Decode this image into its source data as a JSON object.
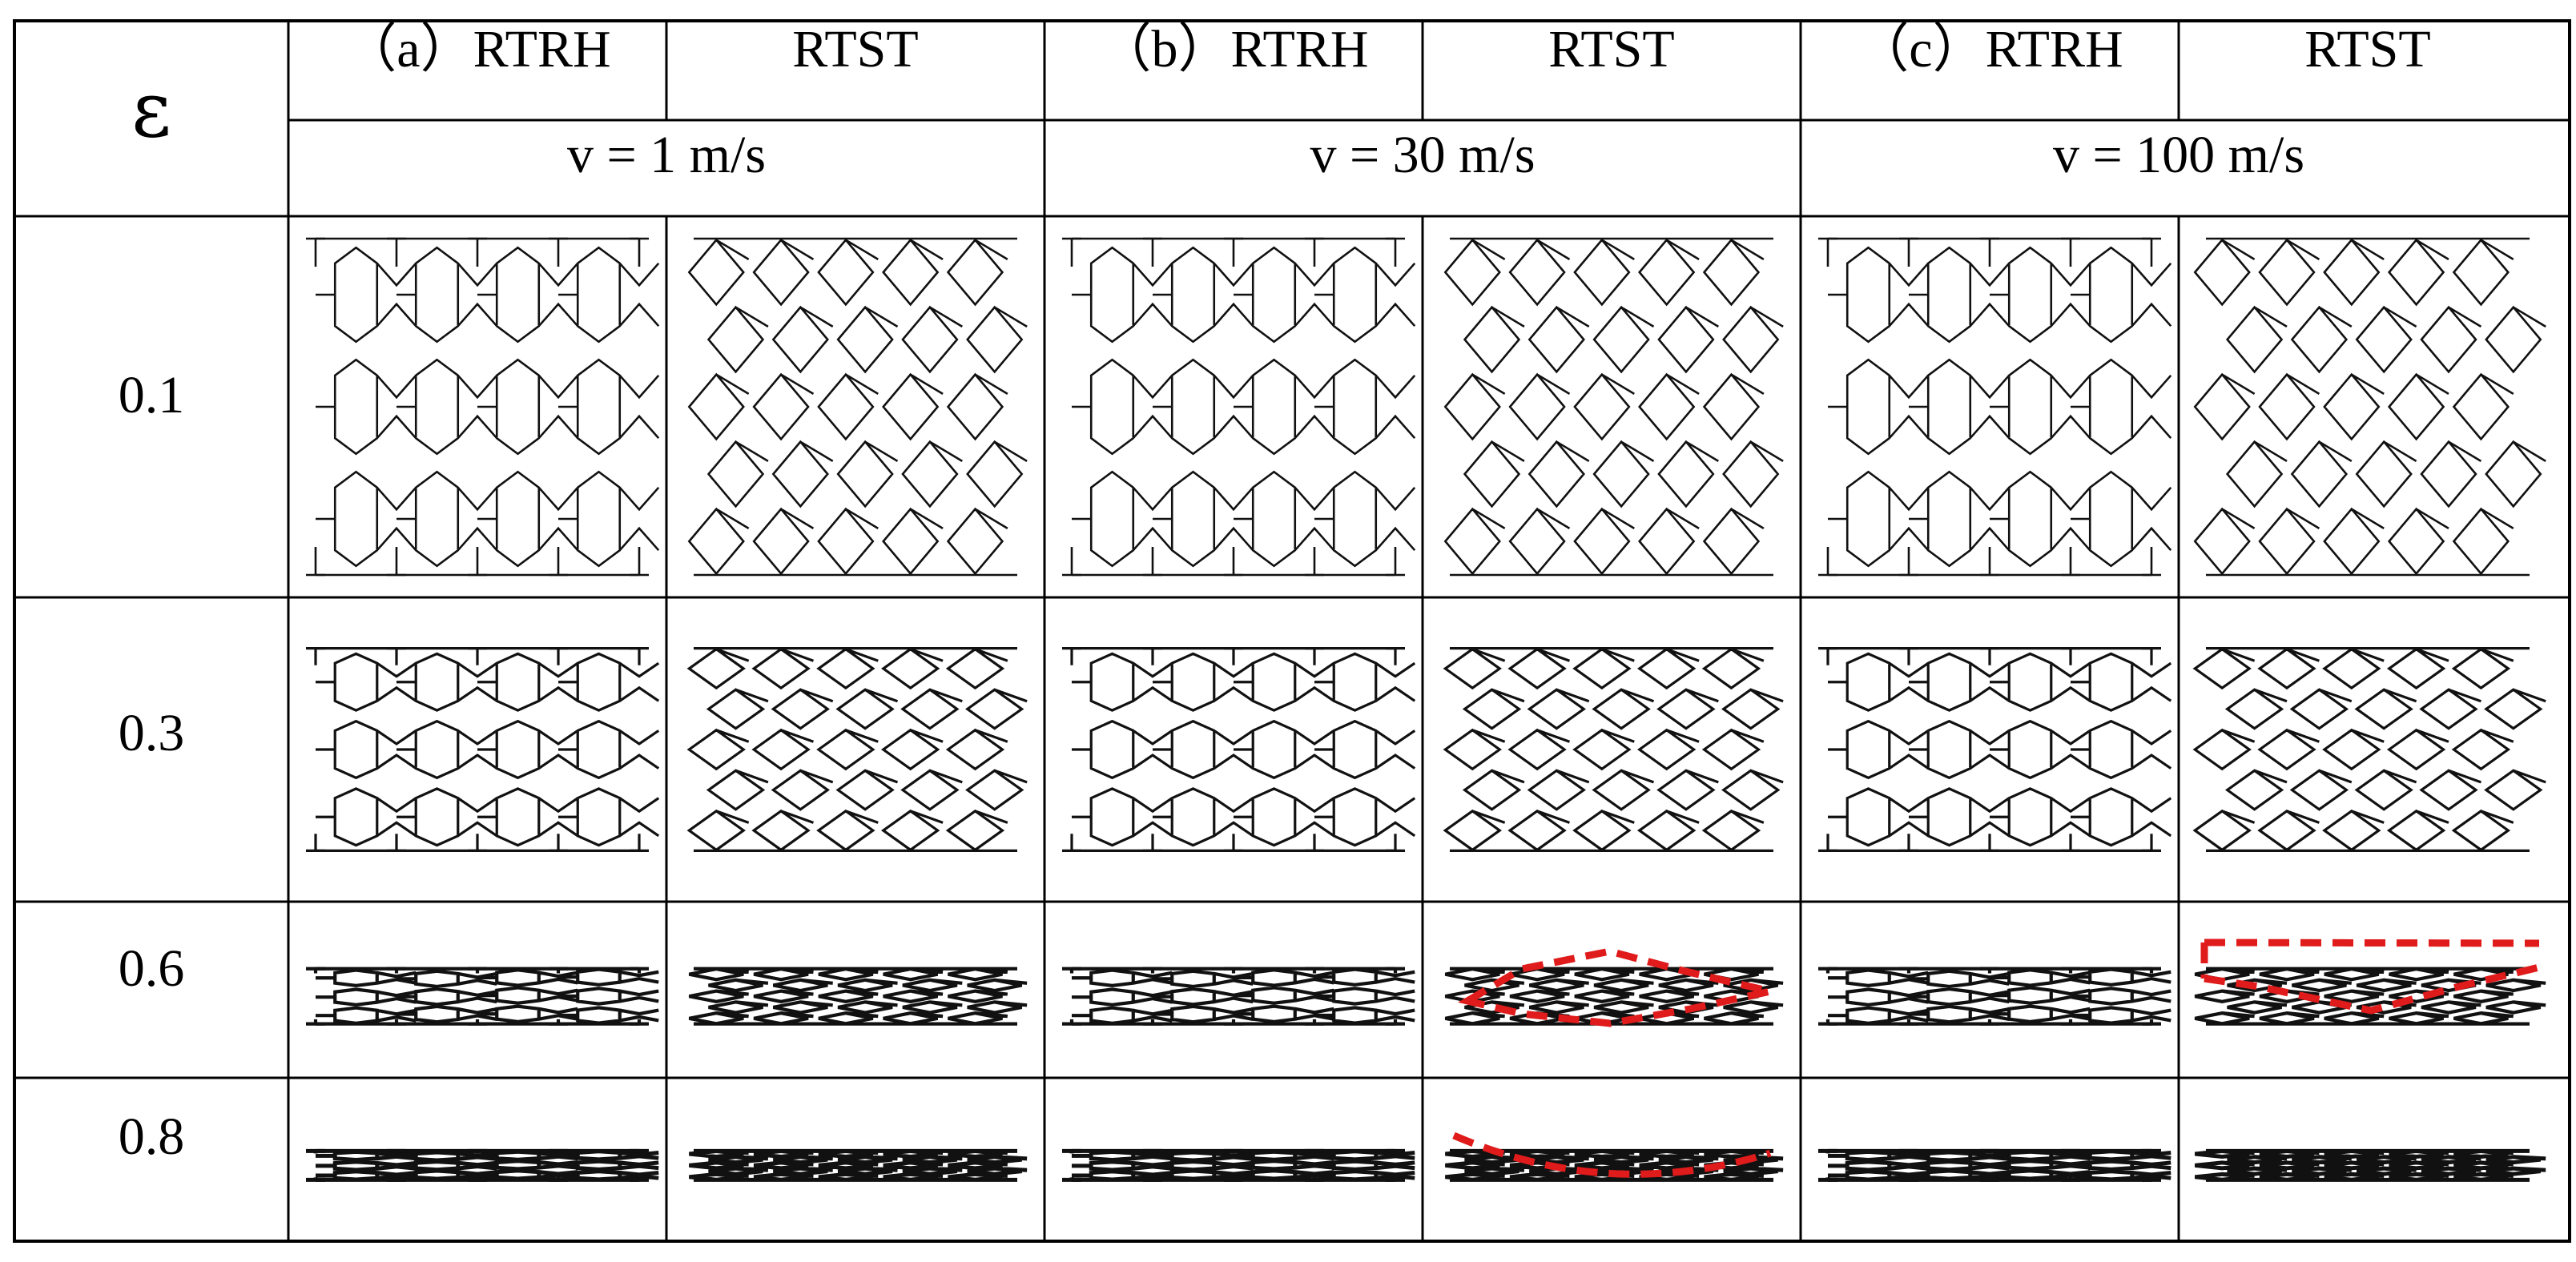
{
  "epsilon_symbol": "ε",
  "groups": [
    {
      "id": "a",
      "left_label": "（a）RTRH",
      "right_label": "RTST",
      "velocity": "v = 1 m/s"
    },
    {
      "id": "b",
      "left_label": "（b）RTRH",
      "right_label": "RTST",
      "velocity": "v = 30 m/s"
    },
    {
      "id": "c",
      "left_label": "（c）RTRH",
      "right_label": "RTST",
      "velocity": "v = 100 m/s"
    }
  ],
  "rows": [
    {
      "strain": "0.1"
    },
    {
      "strain": "0.3"
    },
    {
      "strain": "0.6"
    },
    {
      "strain": "0.8"
    }
  ],
  "structures": [
    "RTRH",
    "RTST"
  ],
  "colors": {
    "lines": "#000000",
    "highlight": "#e01b1b",
    "background": "#ffffff"
  }
}
